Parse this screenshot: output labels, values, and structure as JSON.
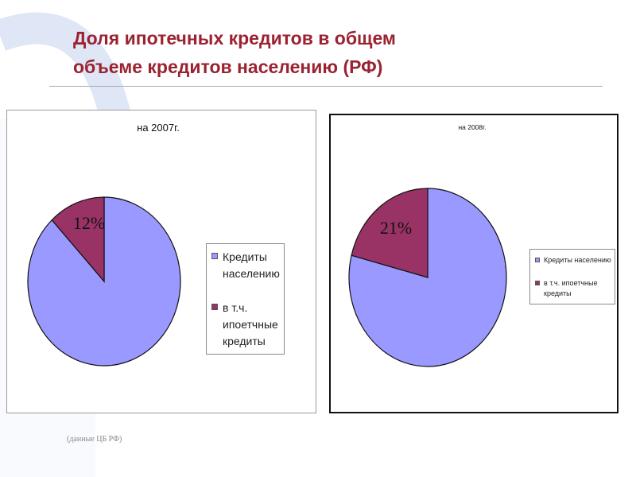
{
  "slide": {
    "title_lines": [
      "Доля ипотечных кредитов в общем",
      "объеме кредитов населению (РФ)"
    ],
    "source_note": "(данные ЦБ РФ)",
    "colors": {
      "title": "#9b2230",
      "deco_arc": "#dfe6f5"
    }
  },
  "chart_data": [
    {
      "type": "pie",
      "title": "на 2007г.",
      "categories": [
        "Кредиты населению",
        "в т.ч. ипоетчные кредиты"
      ],
      "values": [
        88,
        12
      ],
      "percent_label": "12%",
      "colors": [
        "#9999ff",
        "#993366"
      ],
      "legend_position": "right"
    },
    {
      "type": "pie",
      "title": "на 2008г.",
      "categories": [
        "Кредиты населению",
        "в т.ч. ипоетчные кредиты"
      ],
      "values": [
        79,
        21
      ],
      "percent_label": "21%",
      "colors": [
        "#9999ff",
        "#993366"
      ],
      "legend_position": "right"
    }
  ]
}
